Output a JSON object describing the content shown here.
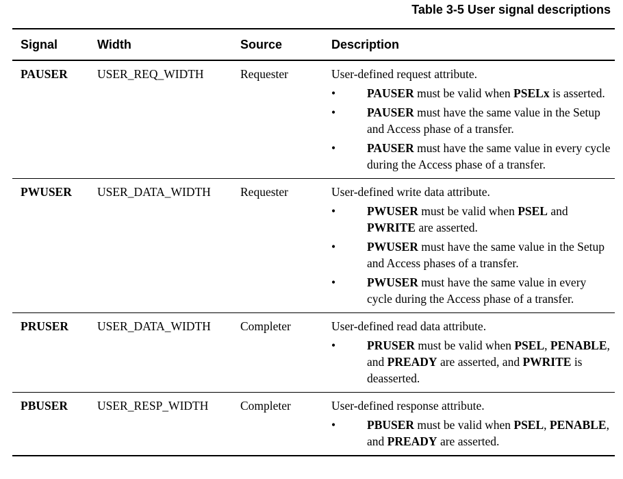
{
  "caption": "Table 3-5 User signal descriptions",
  "headers": {
    "signal": "Signal",
    "width": "Width",
    "source": "Source",
    "description": "Description"
  },
  "bullet_glyph": "•",
  "rows": [
    {
      "signal": "PAUSER",
      "width": "USER_REQ_WIDTH",
      "source": "Requester",
      "lead": "User-defined request attribute.",
      "bullets": [
        [
          {
            "t": "PAUSER",
            "b": true
          },
          {
            "t": " must be valid when ",
            "b": false
          },
          {
            "t": "PSELx",
            "b": true
          },
          {
            "t": " is asserted.",
            "b": false
          }
        ],
        [
          {
            "t": "PAUSER",
            "b": true
          },
          {
            "t": " must have the same value in the Setup and Access phase of a transfer.",
            "b": false
          }
        ],
        [
          {
            "t": "PAUSER",
            "b": true
          },
          {
            "t": " must have the same value in every cycle during the Access phase of a transfer.",
            "b": false
          }
        ]
      ]
    },
    {
      "signal": "PWUSER",
      "width": "USER_DATA_WIDTH",
      "source": "Requester",
      "lead": "User-defined write data attribute.",
      "bullets": [
        [
          {
            "t": "PWUSER",
            "b": true
          },
          {
            "t": " must be valid when ",
            "b": false
          },
          {
            "t": "PSEL",
            "b": true
          },
          {
            "t": " and ",
            "b": false
          },
          {
            "t": "PWRITE",
            "b": true
          },
          {
            "t": " are asserted.",
            "b": false
          }
        ],
        [
          {
            "t": "PWUSER",
            "b": true
          },
          {
            "t": " must have the same value in the Setup and Access phases of a transfer.",
            "b": false
          }
        ],
        [
          {
            "t": "PWUSER",
            "b": true
          },
          {
            "t": " must have the same value in every cycle during the Access phase of a transfer.",
            "b": false
          }
        ]
      ]
    },
    {
      "signal": "PRUSER",
      "width": "USER_DATA_WIDTH",
      "source": "Completer",
      "lead": "User-defined read data attribute.",
      "bullets": [
        [
          {
            "t": "PRUSER",
            "b": true
          },
          {
            "t": " must be valid when ",
            "b": false
          },
          {
            "t": "PSEL",
            "b": true
          },
          {
            "t": ", ",
            "b": false
          },
          {
            "t": "PENABLE",
            "b": true
          },
          {
            "t": ", and ",
            "b": false
          },
          {
            "t": "PREADY",
            "b": true
          },
          {
            "t": " are asserted, and ",
            "b": false
          },
          {
            "t": "PWRITE",
            "b": true
          },
          {
            "t": " is deasserted.",
            "b": false
          }
        ]
      ]
    },
    {
      "signal": "PBUSER",
      "width": "USER_RESP_WIDTH",
      "source": "Completer",
      "lead": "User-defined response attribute.",
      "bullets": [
        [
          {
            "t": "PBUSER",
            "b": true
          },
          {
            "t": " must be valid when ",
            "b": false
          },
          {
            "t": "PSEL",
            "b": true
          },
          {
            "t": ", ",
            "b": false
          },
          {
            "t": "PENABLE",
            "b": true
          },
          {
            "t": ", and ",
            "b": false
          },
          {
            "t": "PREADY",
            "b": true
          },
          {
            "t": " are asserted.",
            "b": false
          }
        ]
      ]
    }
  ]
}
